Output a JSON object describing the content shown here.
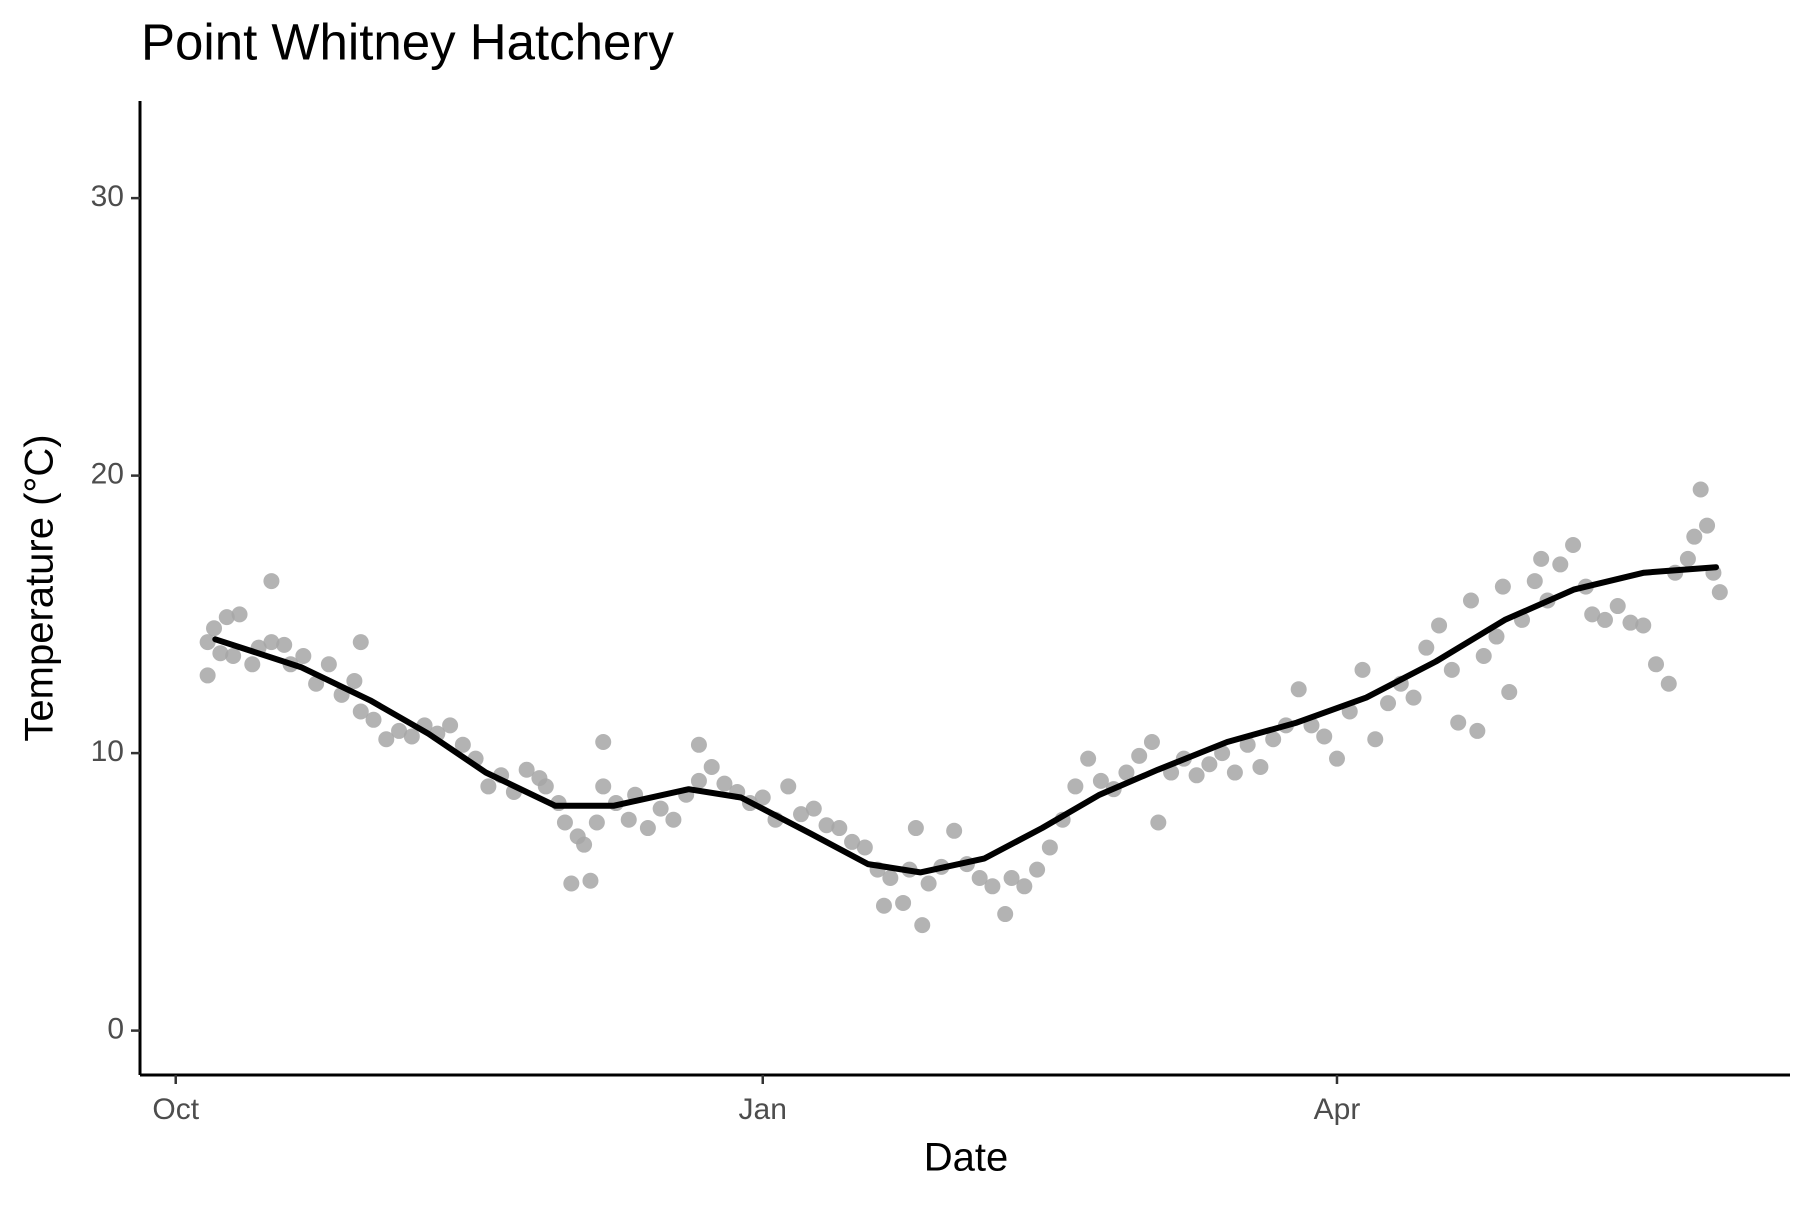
{
  "chart_data": {
    "type": "scatter",
    "title": "Point Whitney Hatchery",
    "xlabel": "Date",
    "ylabel": "Temperature (°C)",
    "color": "#a6a6a6",
    "x": [
      5,
      5,
      6,
      7,
      8,
      9,
      10,
      12,
      13,
      15,
      15,
      17,
      18,
      20,
      22,
      24,
      26,
      28,
      29,
      29,
      31,
      33,
      35,
      37,
      39,
      41,
      43,
      45,
      47,
      49,
      51,
      53,
      55,
      57,
      58,
      60,
      61,
      62,
      63,
      64,
      65,
      66,
      67,
      67,
      69,
      71,
      72,
      74,
      76,
      78,
      80,
      82,
      82,
      84,
      86,
      88,
      90,
      92,
      94,
      96,
      98,
      100,
      102,
      104,
      106,
      108,
      110,
      111,
      112,
      114,
      115,
      116,
      117,
      118,
      120,
      122,
      124,
      126,
      128,
      130,
      131,
      133,
      135,
      137,
      139,
      141,
      143,
      145,
      147,
      149,
      151,
      153,
      154,
      156,
      158,
      160,
      162,
      164,
      166,
      168,
      170,
      172,
      174,
      176,
      178,
      180,
      182,
      184,
      186,
      188,
      190,
      192,
      194,
      196,
      198,
      200,
      201,
      203,
      204,
      205,
      207,
      208,
      209,
      211,
      213,
      214,
      215,
      217,
      219,
      221,
      222,
      224,
      226,
      228,
      230,
      232,
      234,
      235,
      237,
      238,
      239,
      240,
      241,
      242
    ],
    "values": [
      14,
      12.8,
      14.5,
      13.6,
      14.9,
      13.5,
      15,
      13.2,
      13.8,
      16.2,
      14,
      13.9,
      13.2,
      13.5,
      12.5,
      13.2,
      12.1,
      12.6,
      14,
      11.5,
      11.2,
      10.5,
      10.8,
      10.6,
      11,
      10.7,
      11,
      10.3,
      9.8,
      8.8,
      9.2,
      8.6,
      9.4,
      9.1,
      8.8,
      8.2,
      7.5,
      5.3,
      7,
      6.7,
      5.4,
      7.5,
      10.4,
      8.8,
      8.2,
      7.6,
      8.5,
      7.3,
      8,
      7.6,
      8.5,
      10.3,
      9,
      9.5,
      8.9,
      8.6,
      8.2,
      8.4,
      7.6,
      8.8,
      7.8,
      8,
      7.4,
      7.3,
      6.8,
      6.6,
      5.8,
      4.5,
      5.5,
      4.6,
      5.8,
      7.3,
      3.8,
      5.3,
      5.9,
      7.2,
      6,
      5.5,
      5.2,
      4.2,
      5.5,
      5.2,
      5.8,
      6.6,
      7.6,
      8.8,
      9.8,
      9,
      8.7,
      9.3,
      9.9,
      10.4,
      7.5,
      9.3,
      9.8,
      9.2,
      9.6,
      10,
      9.3,
      10.3,
      9.5,
      10.5,
      11,
      12.3,
      11,
      10.6,
      9.8,
      11.5,
      13,
      10.5,
      11.8,
      12.5,
      12,
      13.8,
      14.6,
      13,
      11.1,
      15.5,
      10.8,
      13.5,
      14.2,
      16,
      12.2,
      14.8,
      16.2,
      17,
      15.5,
      16.8,
      17.5,
      16,
      15,
      14.8,
      15.3,
      14.7,
      14.6,
      13.2,
      12.5,
      16.5,
      17,
      17.8,
      19.5,
      18.2,
      16.5,
      15.8
    ],
    "smooth": {
      "color": "#000000",
      "x": [
        6.2,
        19.6,
        30.5,
        39.6,
        48.6,
        59.5,
        68.6,
        80.4,
        88.6,
        99.5,
        108.5,
        116.7,
        126.7,
        135.8,
        144.8,
        153.9,
        164.8,
        175.7,
        186.6,
        197.5,
        208.3,
        219.2,
        230.1,
        241.4
      ],
      "values": [
        14.1,
        13.1,
        11.9,
        10.7,
        9.3,
        8.1,
        8.1,
        8.7,
        8.4,
        7.1,
        6.0,
        5.7,
        6.2,
        7.3,
        8.5,
        9.4,
        10.4,
        11.1,
        12.0,
        13.3,
        14.8,
        15.9,
        16.5,
        16.7
      ]
    },
    "xlim": [
      -5.6,
      253
    ],
    "ylim": [
      -1.6,
      33.5
    ],
    "xticks": [
      {
        "value": 0,
        "label": "Oct"
      },
      {
        "value": 92,
        "label": "Jan"
      },
      {
        "value": 182,
        "label": "Apr"
      }
    ],
    "yticks": [
      0,
      10,
      20,
      30
    ]
  }
}
